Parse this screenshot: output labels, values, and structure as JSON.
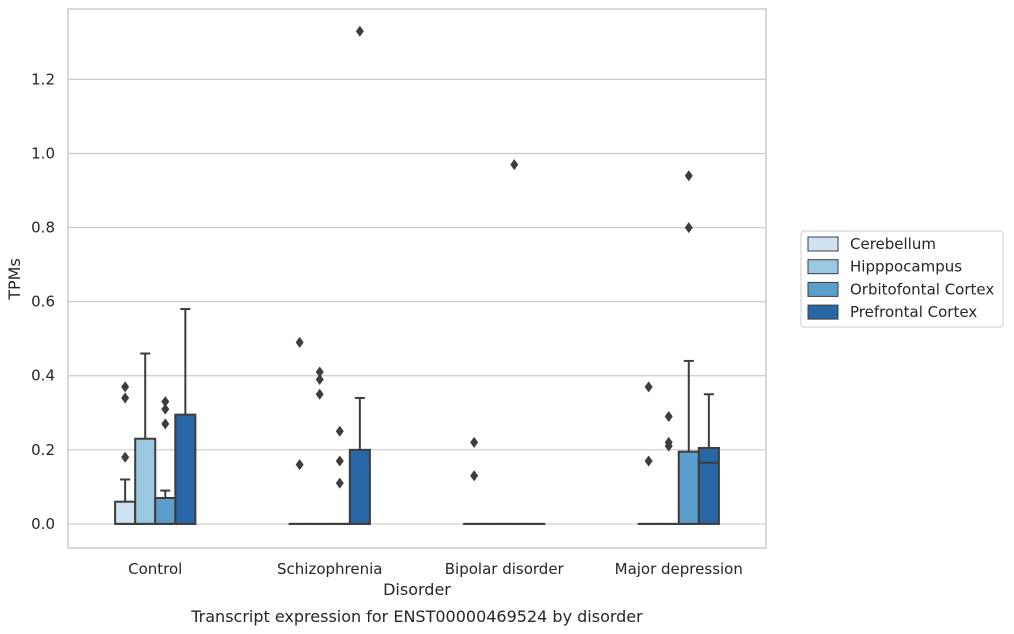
{
  "caption": "Transcript expression for ENST00000469524 by disorder",
  "chart_data": {
    "type": "box",
    "xlabel": "Disorder",
    "ylabel": "TPMs",
    "ylim": [
      -0.065,
      1.39
    ],
    "yticks": [
      0.0,
      0.2,
      0.4,
      0.6,
      0.8,
      1.0,
      1.2
    ],
    "ytick_labels": [
      "0.0",
      "0.2",
      "0.4",
      "0.6",
      "0.8",
      "1.0",
      "1.2"
    ],
    "grid": true,
    "legend_position": "right, outside",
    "categories": [
      "Control",
      "Schizophrenia",
      "Bipolar disorder",
      "Major depression"
    ],
    "series": [
      {
        "name": "Cerebellum",
        "color": "#d0e1f2",
        "boxes": [
          {
            "min": 0.0,
            "q1": 0.0,
            "median": 0.0,
            "q3": 0.06,
            "max": 0.12,
            "outliers": [
              0.18,
              0.34,
              0.37
            ]
          },
          {
            "min": 0.0,
            "q1": 0.0,
            "median": 0.0,
            "q3": 0.0,
            "max": 0.0,
            "outliers": [
              0.16,
              0.49
            ]
          },
          {
            "min": 0.0,
            "q1": 0.0,
            "median": 0.0,
            "q3": 0.0,
            "max": 0.0,
            "outliers": [
              0.13,
              0.22
            ]
          },
          {
            "min": 0.0,
            "q1": 0.0,
            "median": 0.0,
            "q3": 0.0,
            "max": 0.0,
            "outliers": [
              0.17,
              0.37
            ]
          }
        ]
      },
      {
        "name": "Hipppocampus",
        "color": "#9ac8e0",
        "boxes": [
          {
            "min": 0.0,
            "q1": 0.0,
            "median": 0.0,
            "q3": 0.23,
            "max": 0.46,
            "outliers": []
          },
          {
            "min": 0.0,
            "q1": 0.0,
            "median": 0.0,
            "q3": 0.0,
            "max": 0.0,
            "outliers": [
              0.35,
              0.39,
              0.41
            ]
          },
          {
            "min": 0.0,
            "q1": 0.0,
            "median": 0.0,
            "q3": 0.0,
            "max": 0.0,
            "outliers": []
          },
          {
            "min": 0.0,
            "q1": 0.0,
            "median": 0.0,
            "q3": 0.0,
            "max": 0.0,
            "outliers": [
              0.21,
              0.22,
              0.29
            ]
          }
        ]
      },
      {
        "name": "Orbitofontal Cortex",
        "color": "#5a9fcb",
        "boxes": [
          {
            "min": 0.0,
            "q1": 0.0,
            "median": 0.0,
            "q3": 0.07,
            "max": 0.09,
            "outliers": [
              0.27,
              0.31,
              0.33
            ]
          },
          {
            "min": 0.0,
            "q1": 0.0,
            "median": 0.0,
            "q3": 0.0,
            "max": 0.0,
            "outliers": [
              0.11,
              0.17,
              0.25
            ]
          },
          {
            "min": 0.0,
            "q1": 0.0,
            "median": 0.0,
            "q3": 0.0,
            "max": 0.0,
            "outliers": [
              0.97
            ]
          },
          {
            "min": 0.0,
            "q1": 0.0,
            "median": 0.0,
            "q3": 0.195,
            "max": 0.44,
            "outliers": [
              0.8,
              0.94
            ]
          }
        ]
      },
      {
        "name": "Prefrontal Cortex",
        "color": "#2866a6",
        "boxes": [
          {
            "min": 0.0,
            "q1": 0.0,
            "median": 0.0,
            "q3": 0.295,
            "max": 0.58,
            "outliers": []
          },
          {
            "min": 0.0,
            "q1": 0.0,
            "median": 0.0,
            "q3": 0.2,
            "max": 0.34,
            "outliers": [
              1.33
            ]
          },
          {
            "min": 0.0,
            "q1": 0.0,
            "median": 0.0,
            "q3": 0.0,
            "max": 0.0,
            "outliers": []
          },
          {
            "min": 0.0,
            "q1": 0.0,
            "median": 0.165,
            "q3": 0.205,
            "max": 0.35,
            "outliers": []
          }
        ]
      }
    ]
  }
}
